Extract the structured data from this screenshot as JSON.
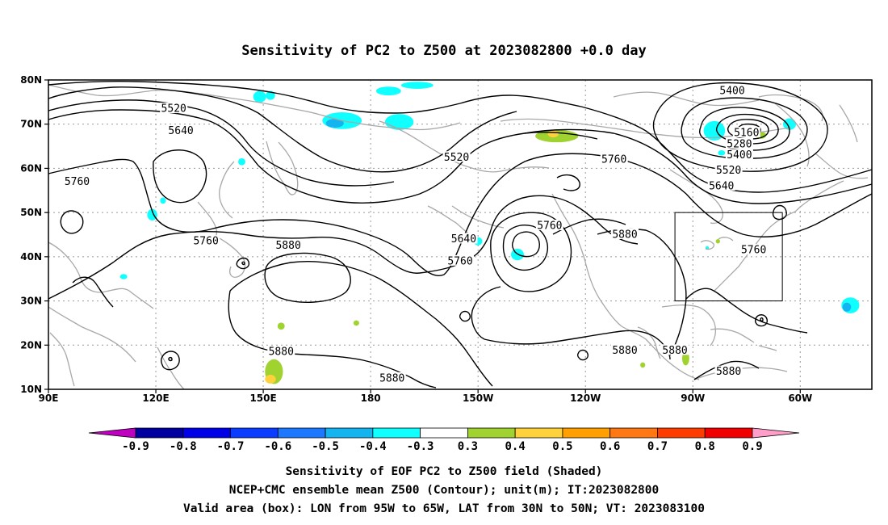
{
  "title": "Sensitivity of PC2 to Z500 at 2023082800 +0.0 day",
  "footer": {
    "line1": "Sensitivity of EOF PC2 to Z500 field (Shaded)",
    "line2": "NCEP+CMC ensemble mean Z500 (Contour); unit(m); IT:2023082800",
    "line3": "Valid area (box): LON from 95W to 65W, LAT from 30N to 50N; VT: 2023083100"
  },
  "map": {
    "lon_ticks": [
      "90E",
      "120E",
      "150E",
      "180",
      "150W",
      "120W",
      "90W",
      "60W"
    ],
    "lat_ticks": [
      "80N",
      "70N",
      "60N",
      "50N",
      "40N",
      "30N",
      "20N",
      "10N"
    ],
    "lon_range_deg_east": [
      90,
      320
    ],
    "lat_range": [
      10,
      80
    ],
    "valid_box": {
      "lon_west_deg_east": 265,
      "lon_east_deg_east": 295,
      "lat_south": 30,
      "lat_north": 50
    }
  },
  "contour_labels": [
    {
      "text": "5520",
      "lon": 125,
      "lat": 73.5
    },
    {
      "text": "5640",
      "lon": 127,
      "lat": 68.5
    },
    {
      "text": "5760",
      "lon": 98,
      "lat": 57
    },
    {
      "text": "5760",
      "lon": 134,
      "lat": 43.5
    },
    {
      "text": "5880",
      "lon": 157,
      "lat": 42.5
    },
    {
      "text": "5880",
      "lon": 155,
      "lat": 18.5
    },
    {
      "text": "5880",
      "lon": 186,
      "lat": 12.5
    },
    {
      "text": "5520",
      "lon": 204,
      "lat": 62.5
    },
    {
      "text": "5640",
      "lon": 206,
      "lat": 44
    },
    {
      "text": "5760",
      "lon": 205,
      "lat": 39
    },
    {
      "text": "5760",
      "lon": 230,
      "lat": 47
    },
    {
      "text": "5760",
      "lon": 248,
      "lat": 62
    },
    {
      "text": "5880",
      "lon": 251,
      "lat": 45
    },
    {
      "text": "5880",
      "lon": 251,
      "lat": 18.8
    },
    {
      "text": "5880",
      "lon": 265,
      "lat": 18.8
    },
    {
      "text": "5880",
      "lon": 280,
      "lat": 14
    },
    {
      "text": "5400",
      "lon": 281,
      "lat": 77.5
    },
    {
      "text": "5160",
      "lon": 285,
      "lat": 68
    },
    {
      "text": "5280",
      "lon": 283,
      "lat": 65.5
    },
    {
      "text": "5400",
      "lon": 283,
      "lat": 63
    },
    {
      "text": "5520",
      "lon": 280,
      "lat": 59.5
    },
    {
      "text": "5640",
      "lon": 278,
      "lat": 56
    },
    {
      "text": "5760",
      "lon": 287,
      "lat": 41.5
    }
  ],
  "colorbar": {
    "labels": [
      "-0.9",
      "-0.8",
      "-0.7",
      "-0.6",
      "-0.5",
      "-0.4",
      "-0.3",
      "0.3",
      "0.4",
      "0.5",
      "0.6",
      "0.7",
      "0.8",
      "0.9"
    ],
    "colors": [
      "#c000c0",
      "#0000a0",
      "#0000e8",
      "#0a3cff",
      "#1e78ff",
      "#14b4f0",
      "#10ffff",
      "#ffffff",
      "#a0d230",
      "#ffd23c",
      "#ffa000",
      "#ff7814",
      "#ff3c00",
      "#f00000",
      "#ff9ec8"
    ]
  },
  "shading": [
    {
      "lon": 149,
      "lat": 76.2,
      "rx": 1.8,
      "ry": 1.3,
      "color": "#10ffff"
    },
    {
      "lon": 152,
      "lat": 76.5,
      "rx": 1.3,
      "ry": 1.0,
      "color": "#10ffff"
    },
    {
      "lon": 172,
      "lat": 70.8,
      "rx": 5.5,
      "ry": 1.9,
      "color": "#10ffff"
    },
    {
      "lon": 170,
      "lat": 70.2,
      "rx": 2.5,
      "ry": 1.0,
      "color": "#14b4f0"
    },
    {
      "lon": 188,
      "lat": 70.5,
      "rx": 4.0,
      "ry": 1.8,
      "color": "#10ffff"
    },
    {
      "lon": 185,
      "lat": 77.5,
      "rx": 3.5,
      "ry": 1.0,
      "color": "#10ffff"
    },
    {
      "lon": 193,
      "lat": 78.8,
      "rx": 4.5,
      "ry": 0.8,
      "color": "#10ffff"
    },
    {
      "lon": 232,
      "lat": 67.3,
      "rx": 6.0,
      "ry": 1.4,
      "color": "#a0d230"
    },
    {
      "lon": 231,
      "lat": 67.8,
      "rx": 1.5,
      "ry": 0.8,
      "color": "#ffd23c"
    },
    {
      "lon": 276,
      "lat": 68.5,
      "rx": 3.0,
      "ry": 2.2,
      "color": "#10ffff"
    },
    {
      "lon": 297,
      "lat": 70.0,
      "rx": 1.8,
      "ry": 1.3,
      "color": "#10ffff"
    },
    {
      "lon": 289,
      "lat": 67.5,
      "rx": 1.5,
      "ry": 0.8,
      "color": "#a0d230"
    },
    {
      "lon": 278,
      "lat": 63.5,
      "rx": 1.0,
      "ry": 0.6,
      "color": "#10ffff"
    },
    {
      "lon": 119,
      "lat": 49.5,
      "rx": 1.4,
      "ry": 1.3,
      "color": "#10ffff"
    },
    {
      "lon": 122,
      "lat": 52.7,
      "rx": 0.8,
      "ry": 0.7,
      "color": "#10ffff"
    },
    {
      "lon": 144,
      "lat": 61.5,
      "rx": 1.0,
      "ry": 0.8,
      "color": "#10ffff"
    },
    {
      "lon": 210,
      "lat": 43.5,
      "rx": 1.2,
      "ry": 0.9,
      "color": "#10ffff"
    },
    {
      "lon": 221,
      "lat": 40.5,
      "rx": 1.8,
      "ry": 1.3,
      "color": "#10ffff"
    },
    {
      "lon": 314,
      "lat": 29.0,
      "rx": 2.5,
      "ry": 1.8,
      "color": "#10ffff"
    },
    {
      "lon": 313,
      "lat": 28.6,
      "rx": 1.2,
      "ry": 1.0,
      "color": "#14b4f0"
    },
    {
      "lon": 111,
      "lat": 35.5,
      "rx": 1.0,
      "ry": 0.6,
      "color": "#10ffff"
    },
    {
      "lon": 153,
      "lat": 14.0,
      "rx": 2.5,
      "ry": 2.8,
      "color": "#a0d230"
    },
    {
      "lon": 152,
      "lat": 12.3,
      "rx": 1.5,
      "ry": 1.0,
      "color": "#ffd23c"
    },
    {
      "lon": 155,
      "lat": 24.3,
      "rx": 1.0,
      "ry": 0.8,
      "color": "#a0d230"
    },
    {
      "lon": 176,
      "lat": 25.0,
      "rx": 0.8,
      "ry": 0.6,
      "color": "#a0d230"
    },
    {
      "lon": 268,
      "lat": 17.0,
      "rx": 1.0,
      "ry": 1.6,
      "color": "#a0d230"
    },
    {
      "lon": 256,
      "lat": 15.5,
      "rx": 0.7,
      "ry": 0.6,
      "color": "#a0d230"
    },
    {
      "lon": 277,
      "lat": 43.5,
      "rx": 0.6,
      "ry": 0.5,
      "color": "#a0d230"
    },
    {
      "lon": 274,
      "lat": 42.0,
      "rx": 0.5,
      "ry": 0.4,
      "color": "#10ffff"
    }
  ]
}
